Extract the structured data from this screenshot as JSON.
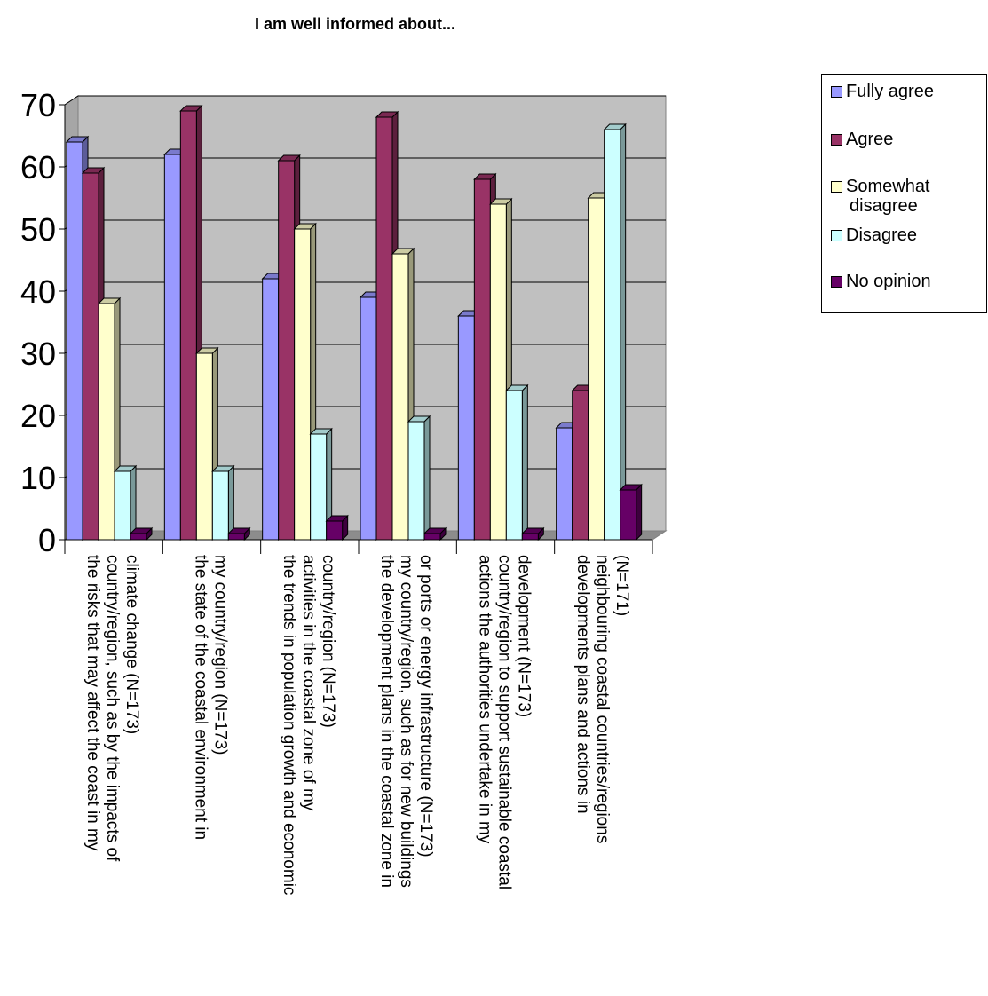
{
  "chart_data": {
    "type": "bar",
    "title": "I am well informed about...",
    "xlabel": "",
    "ylabel": "",
    "ylim": [
      0,
      70
    ],
    "yticks": [
      0,
      10,
      20,
      30,
      40,
      50,
      60,
      70
    ],
    "grid": true,
    "legend_position": "right",
    "categories": [
      "the risks that may affect the coast in my country/region, such as by the impacts of climate change (N=173)",
      "the state of the coastal environment in my country/region (N=173)",
      "the trends in population growth and economic activities in the coastal zone of my country/region  (N=173)",
      "the development plans in the coastal zone in my country/region, such as for new buildings or ports or energy infrastructure (N=173)",
      "actions the authorities undertake in my country/region to support sustainable coastal development (N=173)",
      "developments plans and actions in neighbouring coastal countries/regions (N=171)"
    ],
    "category_lines": [
      [
        "the risks that may affect the coast in my",
        "country/region, such as by the impacts of",
        "climate change (N=173)"
      ],
      [
        "the state of the coastal environment in",
        "my country/region (N=173)"
      ],
      [
        "the trends in population growth and economic",
        "activities in the coastal zone of my",
        "country/region  (N=173)"
      ],
      [
        "the development plans in the coastal zone in",
        "my country/region, such as for new buildings",
        "or ports or energy infrastructure (N=173)"
      ],
      [
        "actions the authorities undertake in my",
        "country/region to support sustainable coastal",
        "development (N=173)"
      ],
      [
        "developments plans and actions in",
        "neighbouring coastal countries/regions",
        "(N=171)"
      ]
    ],
    "series": [
      {
        "name": "Fully agree",
        "color": "#9999ff",
        "values": [
          64,
          62,
          42,
          39,
          36,
          18
        ]
      },
      {
        "name": "Agree",
        "color": "#993366",
        "values": [
          59,
          69,
          61,
          68,
          58,
          24
        ]
      },
      {
        "name": "Somewhat disagree",
        "color": "#ffffcc",
        "values": [
          38,
          30,
          50,
          46,
          54,
          55
        ]
      },
      {
        "name": "Disagree",
        "color": "#ccffff",
        "values": [
          11,
          11,
          17,
          19,
          24,
          66
        ]
      },
      {
        "name": "No opinion",
        "color": "#660066",
        "values": [
          1,
          1,
          3,
          1,
          1,
          8
        ]
      }
    ],
    "wall_color": "#c0c0c0"
  },
  "legend_items": [
    "Fully agree",
    "Agree",
    "Somewhat disagree",
    "Disagree",
    "No opinion"
  ],
  "legend_lines": [
    [
      "Fully agree"
    ],
    [
      "Agree"
    ],
    [
      "Somewhat",
      "disagree"
    ],
    [
      "Disagree"
    ],
    [
      "No opinion"
    ]
  ]
}
